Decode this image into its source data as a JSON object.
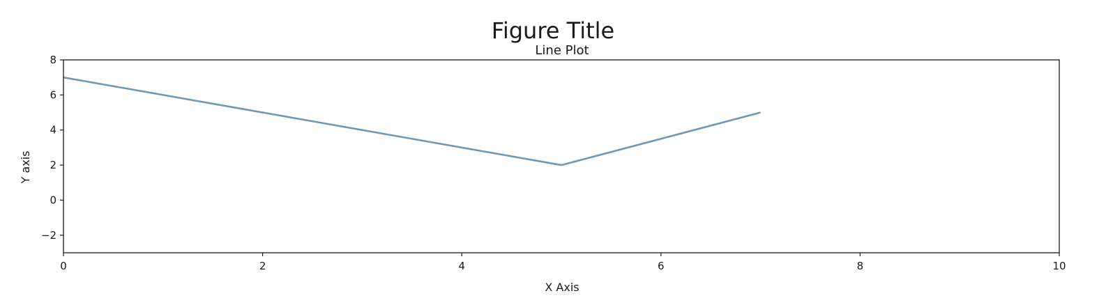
{
  "chart_data": {
    "type": "line",
    "title": "Figure Title",
    "subtitle": "Line Plot",
    "xlabel": "X Axis",
    "ylabel": "Y axis",
    "xlim": [
      0,
      10
    ],
    "ylim": [
      -3,
      8
    ],
    "x_ticks": [
      0,
      2,
      4,
      6,
      8,
      10
    ],
    "y_ticks": [
      -2,
      0,
      2,
      4,
      6,
      8
    ],
    "x_tick_labels": [
      "0",
      "2",
      "4",
      "6",
      "8",
      "10"
    ],
    "y_tick_labels": [
      "−2",
      "0",
      "2",
      "4",
      "6",
      "8"
    ],
    "grid": false,
    "series": [
      {
        "color": "#6f97b7",
        "x": [
          0,
          5,
          7
        ],
        "y": [
          7,
          2,
          5
        ]
      }
    ]
  }
}
